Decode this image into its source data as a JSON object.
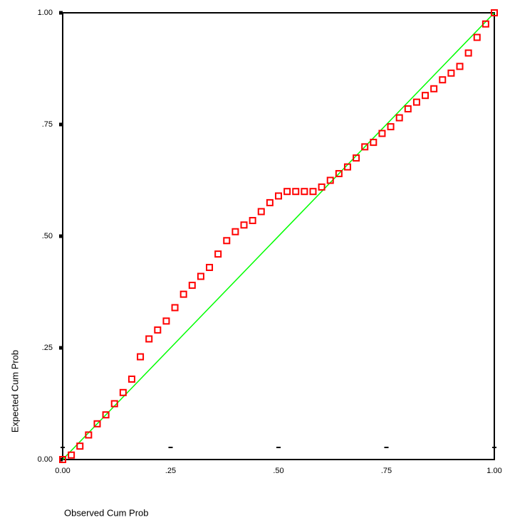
{
  "chart_data": {
    "type": "scatter",
    "x_label": "Observed Cum Prob",
    "y_label": "Expected Cum Prob",
    "xlim": [
      0,
      1
    ],
    "ylim": [
      0,
      1
    ],
    "xticks": [
      {
        "value": 0,
        "label": "0.00"
      },
      {
        "value": 0.25,
        "label": ".25"
      },
      {
        "value": 0.5,
        "label": ".50"
      },
      {
        "value": 0.75,
        "label": ".75"
      },
      {
        "value": 1,
        "label": "1.00"
      }
    ],
    "yticks": [
      {
        "value": 0,
        "label": "0.00"
      },
      {
        "value": 0.25,
        "label": ".25"
      },
      {
        "value": 0.5,
        "label": ".50"
      },
      {
        "value": 0.75,
        "label": ".75"
      },
      {
        "value": 1,
        "label": "1.00"
      }
    ],
    "color": "#ff0000",
    "reference_line_color": "#00ff00",
    "x": [
      0,
      0.02,
      0.04,
      0.06,
      0.08,
      0.1,
      0.12,
      0.14,
      0.16,
      0.18,
      0.2,
      0.22,
      0.24,
      0.26,
      0.28,
      0.3,
      0.32,
      0.34,
      0.36,
      0.38,
      0.4,
      0.42,
      0.44,
      0.46,
      0.48,
      0.5,
      0.52,
      0.54,
      0.56,
      0.58,
      0.6,
      0.62,
      0.64,
      0.66,
      0.68,
      0.7,
      0.72,
      0.74,
      0.76,
      0.78,
      0.8,
      0.82,
      0.84,
      0.86,
      0.88,
      0.9,
      0.92,
      0.94,
      0.96,
      0.98,
      1
    ],
    "values": [
      0,
      0.01,
      0.03,
      0.055,
      0.08,
      0.1,
      0.125,
      0.15,
      0.18,
      0.23,
      0.27,
      0.29,
      0.31,
      0.34,
      0.37,
      0.39,
      0.41,
      0.43,
      0.46,
      0.49,
      0.51,
      0.525,
      0.535,
      0.555,
      0.575,
      0.59,
      0.6,
      0.6,
      0.6,
      0.6,
      0.61,
      0.625,
      0.64,
      0.655,
      0.675,
      0.7,
      0.71,
      0.73,
      0.745,
      0.765,
      0.785,
      0.8,
      0.815,
      0.83,
      0.85,
      0.865,
      0.88,
      0.91,
      0.945,
      0.975,
      1
    ]
  }
}
